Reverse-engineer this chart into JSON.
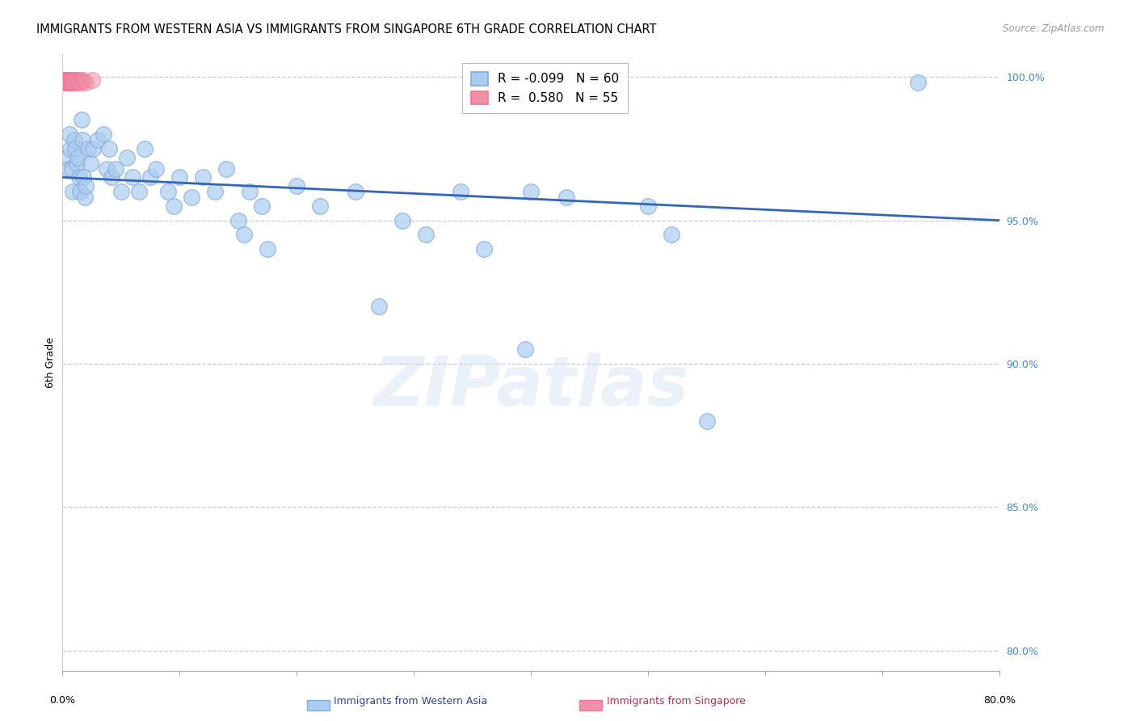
{
  "title": "IMMIGRANTS FROM WESTERN ASIA VS IMMIGRANTS FROM SINGAPORE 6TH GRADE CORRELATION CHART",
  "source": "Source: ZipAtlas.com",
  "ylabel": "6th Grade",
  "ytick_values": [
    1.0,
    0.95,
    0.9,
    0.85,
    0.8
  ],
  "ytick_labels": [
    "100.0%",
    "95.0%",
    "90.0%",
    "85.0%",
    "80.0%"
  ],
  "xlim": [
    0.0,
    0.8
  ],
  "ylim": [
    0.793,
    1.008
  ],
  "legend_blue_R": "-0.099",
  "legend_blue_N": "60",
  "legend_pink_R": "0.580",
  "legend_pink_N": "55",
  "blue_color": "#aaccee",
  "blue_edge": "#88aadd",
  "pink_color": "#f090a8",
  "pink_edge": "#ee7799",
  "line_color": "#3366bb",
  "grid_color": "#c8ccd8",
  "title_fontsize": 10.5,
  "axis_label_fontsize": 9,
  "tick_fontsize": 9,
  "legend_fontsize": 11,
  "trend_x0": 0.0,
  "trend_x1": 0.8,
  "trend_y0": 0.965,
  "trend_y1": 0.95,
  "blue_x": [
    0.003,
    0.005,
    0.006,
    0.007,
    0.008,
    0.009,
    0.01,
    0.011,
    0.012,
    0.013,
    0.014,
    0.015,
    0.016,
    0.017,
    0.018,
    0.019,
    0.02,
    0.022,
    0.024,
    0.026,
    0.03,
    0.035,
    0.038,
    0.04,
    0.042,
    0.045,
    0.05,
    0.055,
    0.06,
    0.065,
    0.07,
    0.075,
    0.08,
    0.09,
    0.095,
    0.1,
    0.11,
    0.12,
    0.13,
    0.14,
    0.15,
    0.155,
    0.16,
    0.17,
    0.175,
    0.2,
    0.22,
    0.25,
    0.27,
    0.29,
    0.31,
    0.34,
    0.36,
    0.395,
    0.4,
    0.43,
    0.5,
    0.52,
    0.55,
    0.73
  ],
  "blue_y": [
    0.972,
    0.968,
    0.98,
    0.975,
    0.968,
    0.96,
    0.978,
    0.975,
    0.97,
    0.972,
    0.965,
    0.96,
    0.985,
    0.978,
    0.965,
    0.958,
    0.962,
    0.975,
    0.97,
    0.975,
    0.978,
    0.98,
    0.968,
    0.975,
    0.965,
    0.968,
    0.96,
    0.972,
    0.965,
    0.96,
    0.975,
    0.965,
    0.968,
    0.96,
    0.955,
    0.965,
    0.958,
    0.965,
    0.96,
    0.968,
    0.95,
    0.945,
    0.96,
    0.955,
    0.94,
    0.962,
    0.955,
    0.96,
    0.92,
    0.95,
    0.945,
    0.96,
    0.94,
    0.905,
    0.96,
    0.958,
    0.955,
    0.945,
    0.88,
    0.998
  ],
  "pink_x": [
    0.0002,
    0.0003,
    0.0005,
    0.0006,
    0.0007,
    0.0008,
    0.0009,
    0.001,
    0.0012,
    0.0014,
    0.0015,
    0.0016,
    0.0018,
    0.002,
    0.0022,
    0.0024,
    0.0025,
    0.0026,
    0.0028,
    0.003,
    0.0032,
    0.0034,
    0.0035,
    0.0036,
    0.0038,
    0.004,
    0.0042,
    0.0044,
    0.0046,
    0.005,
    0.0052,
    0.0054,
    0.0056,
    0.006,
    0.0062,
    0.0064,
    0.0066,
    0.007,
    0.0072,
    0.0074,
    0.008,
    0.0082,
    0.0084,
    0.009,
    0.0092,
    0.01,
    0.011,
    0.012,
    0.013,
    0.014,
    0.015,
    0.016,
    0.018,
    0.02,
    0.025
  ],
  "pink_y": [
    0.999,
    0.998,
    0.999,
    0.998,
    0.999,
    0.998,
    0.999,
    0.998,
    0.999,
    0.998,
    0.999,
    0.998,
    0.999,
    0.998,
    0.999,
    0.998,
    0.999,
    0.998,
    0.999,
    0.998,
    0.999,
    0.998,
    0.999,
    0.998,
    0.999,
    0.998,
    0.999,
    0.998,
    0.999,
    0.998,
    0.999,
    0.998,
    0.999,
    0.998,
    0.999,
    0.998,
    0.999,
    0.998,
    0.999,
    0.998,
    0.999,
    0.998,
    0.999,
    0.998,
    0.999,
    0.998,
    0.999,
    0.998,
    0.999,
    0.998,
    0.999,
    0.998,
    0.999,
    0.998,
    0.999
  ]
}
